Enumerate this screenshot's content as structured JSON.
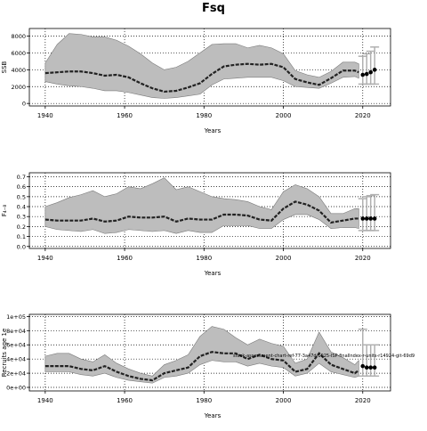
{
  "title": "Fsq",
  "footnote": "stock-assessment-chart-ref-77-3a47d-1025-ISP-finalIndex-r-units-r14924-git-69d9",
  "colors": {
    "band": "#bdbdbd",
    "band_edge": "#7a7a7a",
    "line": "#222222",
    "points": "#000000",
    "error_bars": "#b0b0b0"
  },
  "chart_data": [
    {
      "type": "line",
      "ylabel": "SSB",
      "xlabel": "Years",
      "xlim": [
        1936,
        2027
      ],
      "ylim": [
        -300,
        8900
      ],
      "x_ticks": [
        1940,
        1960,
        1980,
        2000,
        2020
      ],
      "y_ticks": [
        0,
        2000,
        4000,
        6000,
        8000
      ],
      "y_tick_labels": [
        "0",
        "2000",
        "4000",
        "6000",
        "8000"
      ],
      "grid": true,
      "series": [
        {
          "kind": "median_with_band",
          "x": [
            1940,
            1943,
            1946,
            1949,
            1952,
            1955,
            1958,
            1961,
            1964,
            1967,
            1970,
            1973,
            1976,
            1979,
            1982,
            1985,
            1988,
            1991,
            1994,
            1997,
            2000,
            2003,
            2006,
            2009,
            2012,
            2015,
            2018,
            2019
          ],
          "y": [
            3600,
            3700,
            3800,
            3800,
            3600,
            3300,
            3400,
            3100,
            2400,
            1800,
            1400,
            1500,
            1900,
            2400,
            3500,
            4400,
            4600,
            4700,
            4600,
            4700,
            4300,
            2900,
            2500,
            2200,
            3000,
            3900,
            3900,
            3700
          ],
          "lower": [
            2600,
            2300,
            2100,
            2000,
            1800,
            1500,
            1500,
            1300,
            1000,
            700,
            600,
            700,
            900,
            1100,
            2200,
            2900,
            3000,
            3100,
            3100,
            3100,
            2700,
            2000,
            1900,
            1800,
            2400,
            3100,
            3200,
            3000
          ],
          "upper": [
            4800,
            7000,
            8300,
            8200,
            7900,
            7900,
            7500,
            6800,
            5900,
            4800,
            4000,
            4300,
            5000,
            6000,
            7000,
            7100,
            7100,
            6600,
            6900,
            6600,
            5900,
            3900,
            3400,
            3100,
            3800,
            4900,
            4900,
            4700
          ]
        },
        {
          "kind": "points_with_error_bars",
          "x": [
            2020,
            2021,
            2022,
            2023
          ],
          "y": [
            3400,
            3500,
            3700,
            4000
          ],
          "lower": [
            2300,
            2300,
            2300,
            2300
          ],
          "upper": [
            5600,
            5900,
            6200,
            6700
          ]
        }
      ]
    },
    {
      "type": "line",
      "ylabel": "F₄₋₈",
      "xlabel": "Years",
      "xlim": [
        1936,
        2027
      ],
      "ylim": [
        -0.02,
        0.74
      ],
      "x_ticks": [
        1940,
        1960,
        1980,
        2000,
        2020
      ],
      "y_ticks": [
        0.0,
        0.1,
        0.2,
        0.3,
        0.4,
        0.5,
        0.6,
        0.7
      ],
      "y_tick_labels": [
        "0.0",
        "0.1",
        "0.2",
        "0.3",
        "0.4",
        "0.5",
        "0.6",
        "0.7"
      ],
      "grid": true,
      "series": [
        {
          "kind": "median_with_band",
          "x": [
            1940,
            1943,
            1946,
            1949,
            1952,
            1955,
            1958,
            1961,
            1964,
            1967,
            1970,
            1973,
            1976,
            1979,
            1982,
            1985,
            1988,
            1991,
            1994,
            1997,
            2000,
            2003,
            2006,
            2009,
            2012,
            2015,
            2018,
            2019
          ],
          "y": [
            0.27,
            0.26,
            0.26,
            0.26,
            0.28,
            0.25,
            0.26,
            0.3,
            0.29,
            0.29,
            0.3,
            0.25,
            0.28,
            0.27,
            0.27,
            0.32,
            0.32,
            0.31,
            0.27,
            0.26,
            0.38,
            0.45,
            0.42,
            0.36,
            0.24,
            0.26,
            0.28,
            0.28
          ],
          "lower": [
            0.2,
            0.17,
            0.16,
            0.15,
            0.17,
            0.13,
            0.14,
            0.17,
            0.16,
            0.15,
            0.16,
            0.13,
            0.16,
            0.14,
            0.14,
            0.21,
            0.21,
            0.21,
            0.18,
            0.18,
            0.27,
            0.32,
            0.32,
            0.27,
            0.18,
            0.19,
            0.19,
            0.18
          ],
          "upper": [
            0.4,
            0.44,
            0.49,
            0.52,
            0.56,
            0.5,
            0.53,
            0.6,
            0.58,
            0.63,
            0.69,
            0.57,
            0.6,
            0.55,
            0.5,
            0.48,
            0.47,
            0.45,
            0.4,
            0.37,
            0.55,
            0.62,
            0.58,
            0.5,
            0.33,
            0.33,
            0.38,
            0.38
          ]
        },
        {
          "kind": "points_with_error_bars",
          "x": [
            2020,
            2021,
            2022,
            2023
          ],
          "y": [
            0.28,
            0.28,
            0.28,
            0.28
          ],
          "lower": [
            0.16,
            0.16,
            0.16,
            0.16
          ],
          "upper": [
            0.48,
            0.5,
            0.51,
            0.52
          ]
        }
      ]
    },
    {
      "type": "line",
      "ylabel": "Recruits age 1e",
      "xlabel": "Years",
      "xlim": [
        1936,
        2027
      ],
      "ylim": [
        -0.25,
        5.15
      ],
      "x_ticks": [
        1940,
        1960,
        1980,
        2000,
        2020
      ],
      "y_ticks": [
        0,
        1,
        2,
        3,
        4,
        5
      ],
      "y_tick_labels": [
        "0e+00",
        "2e+04",
        "4e+04",
        "6e+04",
        "8e+04",
        "1e+05"
      ],
      "grid": true,
      "series": [
        {
          "kind": "median_with_band",
          "x": [
            1940,
            1943,
            1946,
            1949,
            1952,
            1955,
            1958,
            1961,
            1964,
            1967,
            1970,
            1973,
            1976,
            1979,
            1982,
            1985,
            1988,
            1991,
            1994,
            1997,
            2000,
            2003,
            2006,
            2009,
            2012,
            2015,
            2018,
            2019
          ],
          "y": [
            1.5,
            1.5,
            1.5,
            1.3,
            1.2,
            1.5,
            1.1,
            0.8,
            0.6,
            0.5,
            1.0,
            1.2,
            1.4,
            2.2,
            2.5,
            2.4,
            2.4,
            2.0,
            2.3,
            2.0,
            1.9,
            1.1,
            1.3,
            2.4,
            1.6,
            1.3,
            1.0,
            1.2
          ],
          "lower": [
            1.1,
            1.1,
            1.1,
            0.9,
            0.8,
            1.0,
            0.7,
            0.5,
            0.4,
            0.3,
            0.7,
            0.8,
            1.0,
            1.6,
            1.9,
            1.8,
            1.8,
            1.5,
            1.7,
            1.5,
            1.4,
            0.8,
            1.0,
            1.7,
            1.1,
            0.9,
            0.7,
            0.8
          ],
          "upper": [
            2.2,
            2.4,
            2.4,
            2.0,
            1.8,
            2.3,
            1.7,
            1.3,
            1.0,
            0.8,
            1.6,
            1.9,
            2.3,
            3.6,
            4.3,
            4.1,
            3.5,
            3.0,
            3.4,
            3.1,
            2.9,
            1.7,
            2.0,
            3.9,
            2.5,
            2.1,
            1.6,
            1.9
          ]
        },
        {
          "kind": "points_with_error_bars",
          "x": [
            2020,
            2021,
            2022,
            2023
          ],
          "y": [
            1.5,
            1.4,
            1.4,
            1.4
          ],
          "lower": [
            0.8,
            0.8,
            0.8,
            0.8
          ],
          "upper": [
            4.1,
            3.0,
            3.0,
            3.0
          ]
        }
      ]
    }
  ]
}
